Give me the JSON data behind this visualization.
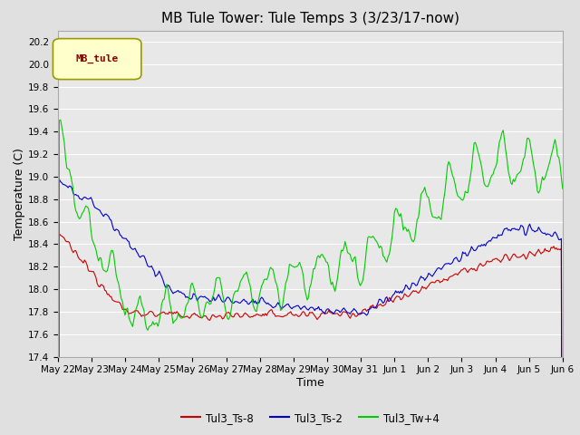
{
  "title": "MB Tule Tower: Tule Temps 3 (3/23/17-now)",
  "xlabel": "Time",
  "ylabel": "Temperature (C)",
  "ylim": [
    17.4,
    20.3
  ],
  "yticks": [
    17.4,
    17.6,
    17.8,
    18.0,
    18.2,
    18.4,
    18.6,
    18.8,
    19.0,
    19.2,
    19.4,
    19.6,
    19.8,
    20.0,
    20.2
  ],
  "xtick_labels": [
    "May 22",
    "May 23",
    "May 24",
    "May 25",
    "May 26",
    "May 27",
    "May 28",
    "May 29",
    "May 30",
    "May 31",
    "Jun 1",
    "Jun 2",
    "Jun 3",
    "Jun 4",
    "Jun 5",
    "Jun 6"
  ],
  "line_colors": [
    "#cc0000",
    "#0000cc",
    "#00cc00"
  ],
  "line_labels": [
    "Tul3_Ts-8",
    "Tul3_Ts-2",
    "Tul3_Tw+4"
  ],
  "line_width": 0.8,
  "fig_bg_color": "#e0e0e0",
  "plot_bg_color": "#e8e8e8",
  "legend_box_color": "#ffffcc",
  "legend_box_edge": "#999900",
  "legend_text": "MB_tule",
  "legend_text_color": "#880000",
  "grid_color": "#ffffff",
  "title_fontsize": 11,
  "axis_label_fontsize": 9,
  "tick_fontsize": 7.5
}
